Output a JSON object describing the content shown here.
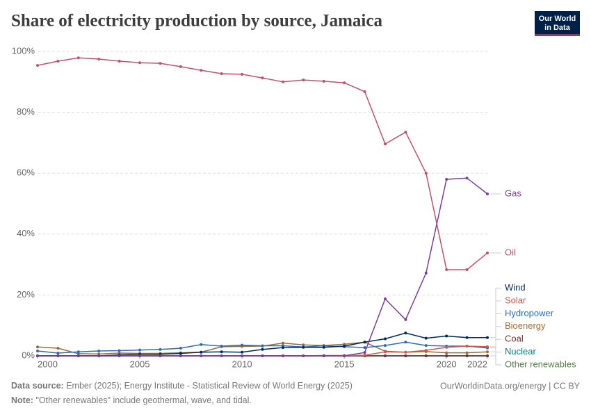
{
  "chart_data": {
    "type": "line",
    "title": "Share of electricity production by source, Jamaica",
    "logo": [
      "Our World",
      "in Data"
    ],
    "source_label": "Data source:",
    "source": "Ember (2025); Energy Institute - Statistical Review of World Energy (2025)",
    "note_label": "Note:",
    "note": "\"Other renewables\" include geothermal, wave, and tidal.",
    "credit": "OurWorldinData.org/energy | CC BY",
    "x": [
      2000,
      2001,
      2002,
      2003,
      2004,
      2005,
      2006,
      2007,
      2008,
      2009,
      2010,
      2011,
      2012,
      2013,
      2014,
      2015,
      2016,
      2017,
      2018,
      2019,
      2020,
      2021,
      2022
    ],
    "xlim": [
      2000,
      2022
    ],
    "xticks": [
      2000,
      2005,
      2010,
      2015,
      2020,
      2022
    ],
    "ylim": [
      0,
      100
    ],
    "yticks": [
      {
        "value": 0,
        "label": "0%"
      },
      {
        "value": 20,
        "label": "20%"
      },
      {
        "value": 40,
        "label": "40%"
      },
      {
        "value": 60,
        "label": "60%"
      },
      {
        "value": 80,
        "label": "80%"
      },
      {
        "value": 100,
        "label": "100%"
      }
    ],
    "grid": true,
    "series": [
      {
        "name": "Gas",
        "color": "#7a3e9d",
        "values": [
          0,
          0,
          0,
          0,
          0,
          0,
          0,
          0,
          0,
          0,
          0,
          0,
          0,
          0,
          0,
          0,
          1.1,
          18.7,
          11.9,
          27.2,
          58,
          58.4,
          53.2
        ]
      },
      {
        "name": "Oil",
        "color": "#c4506a",
        "values": [
          95.4,
          96.8,
          97.9,
          97.5,
          96.8,
          96.3,
          96.1,
          95,
          93.8,
          92.7,
          92.5,
          91.3,
          90,
          90.6,
          90.2,
          89.7,
          86.8,
          69.6,
          73.5,
          60,
          28.3,
          28.3,
          33.8
        ]
      },
      {
        "name": "Wind",
        "color": "#00295b",
        "values": [
          0,
          0,
          0,
          0,
          0.3,
          0.5,
          0.5,
          0.8,
          1.2,
          1.3,
          1.2,
          2.1,
          2.7,
          2.8,
          2.8,
          3.2,
          4.5,
          5.6,
          7.5,
          5.8,
          6.5,
          6,
          6
        ]
      },
      {
        "name": "Solar",
        "color": "#d0584a",
        "values": [
          0,
          0,
          0,
          0,
          0,
          0,
          0,
          0,
          0,
          0,
          0,
          0,
          0,
          0,
          0.1,
          0.1,
          0.2,
          1.3,
          1.2,
          1.8,
          2.8,
          3.2,
          3
        ]
      },
      {
        "name": "Hydropower",
        "color": "#2c6cbb",
        "values": [
          1.6,
          0.9,
          1.3,
          1.6,
          1.7,
          1.9,
          2.1,
          2.5,
          3.7,
          3.2,
          3.5,
          3.3,
          3.3,
          2.9,
          3.3,
          3,
          2.7,
          3.4,
          4.5,
          3.4,
          3.2,
          3.2,
          2.6
        ]
      },
      {
        "name": "Bioenergy",
        "color": "#996d39",
        "values": [
          2.9,
          2.5,
          0.7,
          0.6,
          0.9,
          0.8,
          0.8,
          1,
          1.2,
          3,
          3.1,
          3.2,
          4.2,
          3.6,
          3.4,
          3.8,
          4.5,
          1.5,
          1.2,
          1.4,
          1,
          1,
          1.3
        ]
      },
      {
        "name": "Coal",
        "color": "#6b3232",
        "values": [
          0,
          0,
          0,
          0,
          0,
          0,
          0,
          0,
          0,
          0,
          0,
          0,
          0,
          0,
          0,
          0,
          0,
          0,
          0,
          0,
          0,
          0,
          0
        ]
      },
      {
        "name": "Nuclear",
        "color": "#00847e",
        "values": [
          0,
          0,
          0,
          0,
          0,
          0,
          0,
          0,
          0,
          0,
          0,
          0,
          0,
          0,
          0,
          0,
          0,
          0,
          0,
          0,
          0,
          0,
          0
        ]
      },
      {
        "name": "Other renewables",
        "color": "#578145",
        "values": [
          0,
          0,
          0,
          0,
          0,
          0,
          0,
          0,
          0,
          0,
          0,
          0,
          0,
          0,
          0,
          0,
          0,
          0,
          0,
          0,
          0,
          0,
          0
        ]
      }
    ]
  }
}
